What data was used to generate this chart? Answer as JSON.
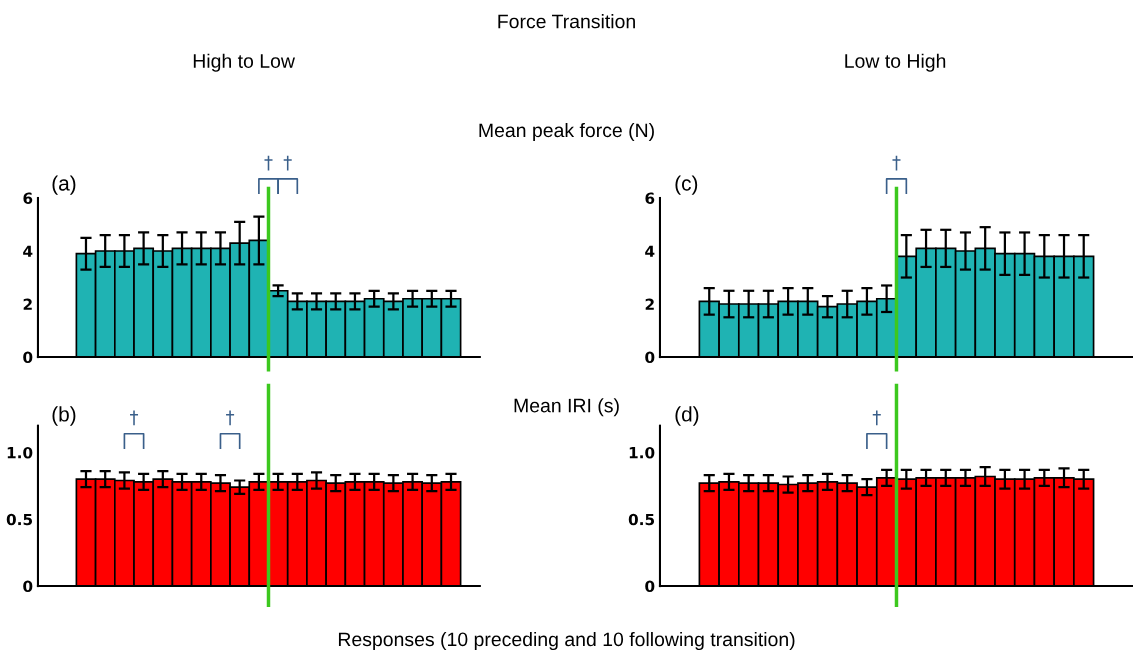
{
  "chart_data": [
    {
      "type": "bar",
      "title": "(a)",
      "subtitle": "High to Low",
      "ylabel": "Mean peak force (N)",
      "annotations": [
        "Force Transition",
        "†",
        "†"
      ],
      "categories": [
        null,
        null,
        null,
        null,
        null,
        null,
        null,
        null,
        null,
        null,
        null,
        null,
        null,
        null,
        null,
        null,
        null,
        null,
        null,
        null,
        null,
        null,
        null
      ],
      "values": [
        null,
        null,
        3.9,
        4.0,
        4.0,
        4.1,
        4.0,
        4.1,
        4.1,
        4.1,
        4.3,
        4.4,
        2.5,
        2.1,
        2.1,
        2.1,
        2.1,
        2.2,
        2.1,
        2.2,
        2.2,
        2.2,
        null
      ],
      "errors": [
        null,
        null,
        0.6,
        0.6,
        0.6,
        0.6,
        0.6,
        0.6,
        0.6,
        0.6,
        0.8,
        0.9,
        0.2,
        0.3,
        0.3,
        0.3,
        0.3,
        0.3,
        0.3,
        0.3,
        0.3,
        0.3,
        null
      ],
      "color": "#1fb3b3",
      "ylim": [
        0,
        6
      ],
      "yticks": [
        0,
        2,
        4,
        6
      ],
      "tick_labels": "y",
      "grid": false
    },
    {
      "type": "bar",
      "title": "(b)",
      "ylabel": "Mean IRI (s)",
      "xlabel": "Responses (10 preceding and 10 following transition)",
      "annotations": [
        "†",
        "†"
      ],
      "categories": [
        null,
        null,
        null,
        null,
        null,
        null,
        null,
        null,
        null,
        null,
        null,
        null,
        null,
        null,
        null,
        null,
        null,
        null,
        null,
        null,
        null,
        null,
        null
      ],
      "values": [
        null,
        null,
        0.8,
        0.8,
        0.79,
        0.78,
        0.8,
        0.78,
        0.78,
        0.77,
        0.74,
        0.78,
        0.78,
        0.78,
        0.79,
        0.77,
        0.78,
        0.78,
        0.77,
        0.78,
        0.77,
        0.78,
        null
      ],
      "errors": [
        null,
        null,
        0.06,
        0.06,
        0.06,
        0.06,
        0.06,
        0.06,
        0.06,
        0.06,
        0.05,
        0.06,
        0.06,
        0.06,
        0.06,
        0.06,
        0.06,
        0.06,
        0.06,
        0.06,
        0.06,
        0.06,
        null
      ],
      "color": "#ff0000",
      "ylim": [
        0,
        1.2
      ],
      "yticks": [
        0,
        0.5,
        {
          "value": 1.0,
          "label": "1.0"
        }
      ],
      "tick_labels": "y",
      "grid": false
    },
    {
      "type": "bar",
      "title": "(c)",
      "subtitle": "Low to High",
      "annotations": [
        "†"
      ],
      "categories": [
        null,
        null,
        null,
        null,
        null,
        null,
        null,
        null,
        null,
        null,
        null,
        null,
        null,
        null,
        null,
        null,
        null,
        null,
        null,
        null,
        null,
        null,
        null,
        null
      ],
      "values": [
        null,
        null,
        2.1,
        2.0,
        2.0,
        2.0,
        2.1,
        2.1,
        1.9,
        2.0,
        2.1,
        2.2,
        3.8,
        4.1,
        4.1,
        4.0,
        4.1,
        3.9,
        3.9,
        3.8,
        3.8,
        3.8,
        null,
        null
      ],
      "errors": [
        null,
        null,
        0.5,
        0.5,
        0.5,
        0.5,
        0.5,
        0.5,
        0.4,
        0.5,
        0.5,
        0.5,
        0.8,
        0.7,
        0.7,
        0.7,
        0.8,
        0.8,
        0.8,
        0.8,
        0.8,
        0.8,
        null,
        null
      ],
      "color": "#1fb3b3",
      "ylim": [
        0,
        6
      ],
      "yticks": [
        0,
        2,
        4,
        6
      ],
      "tick_labels": "y",
      "grid": false
    },
    {
      "type": "bar",
      "title": "(d)",
      "annotations": [
        "†"
      ],
      "categories": [
        null,
        null,
        null,
        null,
        null,
        null,
        null,
        null,
        null,
        null,
        null,
        null,
        null,
        null,
        null,
        null,
        null,
        null,
        null,
        null,
        null,
        null,
        null,
        null
      ],
      "values": [
        null,
        null,
        0.77,
        0.78,
        0.77,
        0.77,
        0.76,
        0.77,
        0.78,
        0.77,
        0.74,
        0.81,
        0.8,
        0.81,
        0.81,
        0.81,
        0.82,
        0.8,
        0.8,
        0.81,
        0.81,
        0.8,
        null,
        null
      ],
      "errors": [
        null,
        null,
        0.06,
        0.06,
        0.06,
        0.06,
        0.06,
        0.06,
        0.06,
        0.06,
        0.06,
        0.06,
        0.07,
        0.06,
        0.06,
        0.06,
        0.07,
        0.07,
        0.07,
        0.06,
        0.07,
        0.07,
        null,
        null
      ],
      "color": "#ff0000",
      "ylim": [
        0,
        1.2
      ],
      "yticks": [
        0,
        0.5,
        {
          "value": 1.0,
          "label": "1.0"
        }
      ],
      "tick_labels": "y",
      "grid": false
    }
  ]
}
